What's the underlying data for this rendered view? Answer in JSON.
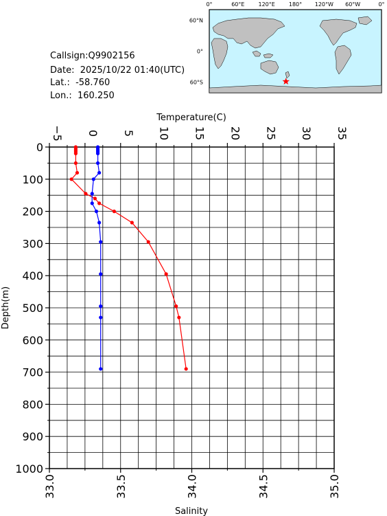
{
  "station": {
    "callsign_label": "Callsign:",
    "callsign": "Q9902156",
    "date_label": "Date:",
    "date": "2025/10/22 01:40(UTC)",
    "lat_label": "Lat.:",
    "lat": "-58.760",
    "lon_label": "Lon.:",
    "lon": "160.250"
  },
  "map": {
    "lon_ticks": [
      "0°",
      "60°E",
      "120°E",
      "180°",
      "120°W",
      "60°W",
      "0°"
    ],
    "lat_ticks": [
      "60°N",
      "0°",
      "60°S"
    ],
    "marker": {
      "lon": 160.25,
      "lat": -58.76
    },
    "ocean_color": "#c8f4ff",
    "land_color": "#c0c0c0",
    "marker_color": "#ff0000"
  },
  "chart_data": {
    "type": "line",
    "y_axis": {
      "label": "Depth(m)",
      "range": [
        0,
        1000
      ],
      "inverted": true,
      "ticks": [
        "0",
        "100",
        "200",
        "300",
        "400",
        "500",
        "600",
        "700",
        "800",
        "900",
        "1000"
      ]
    },
    "top_axis": {
      "label": "Temperature(C)",
      "range": [
        -5,
        35
      ],
      "ticks": [
        "−5",
        "0",
        "5",
        "10",
        "15",
        "20",
        "25",
        "30",
        "35"
      ]
    },
    "bottom_axis": {
      "label": "Salinity",
      "range": [
        33.0,
        35.0
      ],
      "ticks": [
        "33.0",
        "33.5",
        "34.0",
        "34.5",
        "35.0"
      ]
    },
    "grid": true,
    "series": [
      {
        "variable": "temperature",
        "color": "#ff0000",
        "points": [
          {
            "depth": 0,
            "value": -1.3
          },
          {
            "depth": 5,
            "value": -1.3
          },
          {
            "depth": 10,
            "value": -1.3
          },
          {
            "depth": 15,
            "value": -1.3
          },
          {
            "depth": 20,
            "value": -1.3
          },
          {
            "depth": 50,
            "value": -1.3
          },
          {
            "depth": 80,
            "value": -1.1
          },
          {
            "depth": 100,
            "value": -1.9
          },
          {
            "depth": 145,
            "value": 0.1
          },
          {
            "depth": 160,
            "value": 1.4
          },
          {
            "depth": 175,
            "value": 2.0
          },
          {
            "depth": 200,
            "value": 4.1
          },
          {
            "depth": 235,
            "value": 6.6
          },
          {
            "depth": 295,
            "value": 8.9
          },
          {
            "depth": 395,
            "value": 11.4
          },
          {
            "depth": 495,
            "value": 12.8
          },
          {
            "depth": 530,
            "value": 13.2
          },
          {
            "depth": 690,
            "value": 14.2
          }
        ]
      },
      {
        "variable": "salinity",
        "color": "#0000ff",
        "points": [
          {
            "depth": 0,
            "value": 33.34
          },
          {
            "depth": 5,
            "value": 33.34
          },
          {
            "depth": 10,
            "value": 33.34
          },
          {
            "depth": 15,
            "value": 33.34
          },
          {
            "depth": 20,
            "value": 33.34
          },
          {
            "depth": 50,
            "value": 33.34
          },
          {
            "depth": 80,
            "value": 33.35
          },
          {
            "depth": 100,
            "value": 33.31
          },
          {
            "depth": 145,
            "value": 33.3
          },
          {
            "depth": 175,
            "value": 33.3
          },
          {
            "depth": 200,
            "value": 33.33
          },
          {
            "depth": 235,
            "value": 33.35
          },
          {
            "depth": 295,
            "value": 33.36
          },
          {
            "depth": 395,
            "value": 33.36
          },
          {
            "depth": 495,
            "value": 33.36
          },
          {
            "depth": 530,
            "value": 33.36
          },
          {
            "depth": 690,
            "value": 33.36
          }
        ]
      }
    ]
  }
}
